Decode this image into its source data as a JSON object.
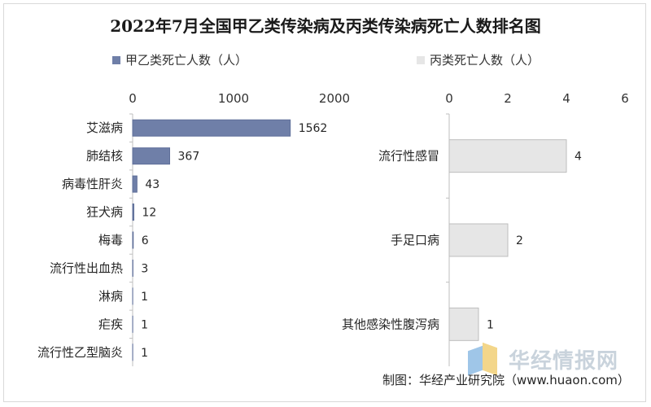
{
  "chart_data": [
    {
      "type": "bar",
      "orientation": "horizontal",
      "title": "2022年7月全国甲乙类传染病及丙类传染病死亡人数排名图",
      "series_name": "甲乙类死亡人数（人）",
      "categories": [
        "艾滋病",
        "肺结核",
        "病毒性肝炎",
        "狂犬病",
        "梅毒",
        "流行性出血热",
        "淋病",
        "疟疾",
        "流行性乙型脑炎"
      ],
      "values": [
        1562,
        367,
        43,
        12,
        6,
        3,
        1,
        1,
        1
      ],
      "xlim": [
        0,
        2000
      ],
      "ticks": [
        0,
        1000,
        2000
      ],
      "axis_position": "top",
      "legend_position": "top",
      "color": "#6f7fa8"
    },
    {
      "type": "bar",
      "orientation": "horizontal",
      "series_name": "丙类死亡人数（人）",
      "categories": [
        "流行性感冒",
        "手足口病",
        "其他感染性腹泻病"
      ],
      "values": [
        4,
        2,
        1
      ],
      "xlim": [
        0,
        6
      ],
      "ticks": [
        0,
        2,
        4,
        6
      ],
      "axis_position": "top",
      "legend_position": "top",
      "color": "#e6e6e6"
    }
  ],
  "source_credit": "制图：华经产业研究院（www.huaon.com）",
  "watermark": "华经情报网"
}
